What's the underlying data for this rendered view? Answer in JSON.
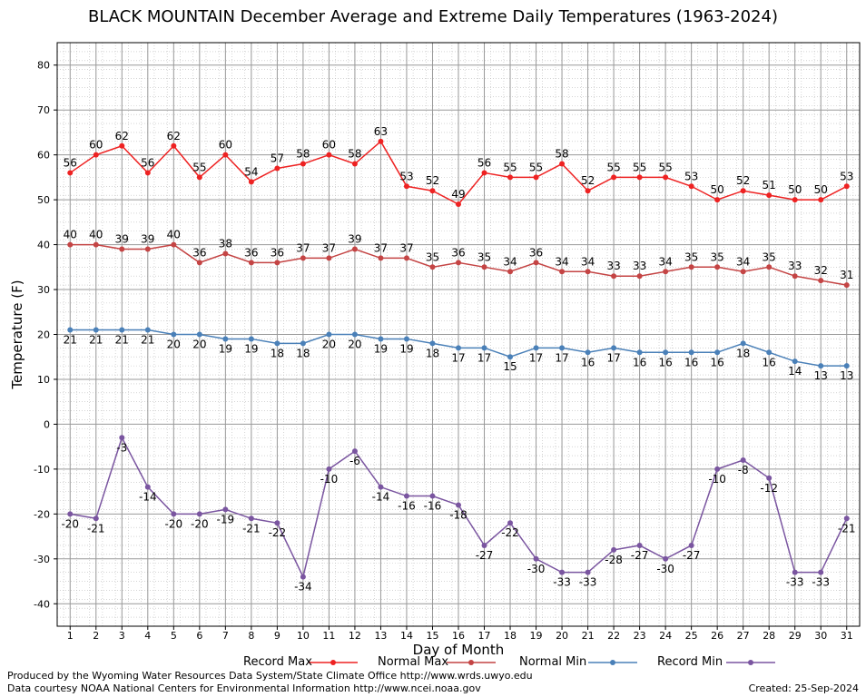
{
  "title": "BLACK MOUNTAIN December Average and Extreme Daily Temperatures (1963-2024)",
  "footer": {
    "produced_by": "Produced by the Wyoming Water Resources Data System/State Climate Office http://www.wrds.uwyo.edu",
    "courtesy": "Data courtesy NOAA National Centers for Environmental Information http://www.ncei.noaa.gov",
    "created": "Created:  25-Sep-2024"
  },
  "chart_data": {
    "type": "line",
    "xlabel": "Day of Month",
    "ylabel": "Temperature (F)",
    "ylim": [
      -45,
      85
    ],
    "yticks": [
      -40,
      -30,
      -20,
      -10,
      0,
      10,
      20,
      30,
      40,
      50,
      60,
      70,
      80
    ],
    "x": [
      1,
      2,
      3,
      4,
      5,
      6,
      7,
      8,
      9,
      10,
      11,
      12,
      13,
      14,
      15,
      16,
      17,
      18,
      19,
      20,
      21,
      22,
      23,
      24,
      25,
      26,
      27,
      28,
      29,
      30,
      31
    ],
    "grid": true,
    "legend_position": "bottom",
    "series": [
      {
        "name": "Record Max",
        "color": "#ee2222",
        "values": [
          56,
          60,
          62,
          56,
          62,
          55,
          60,
          54,
          57,
          58,
          60,
          58,
          63,
          53,
          52,
          49,
          56,
          55,
          55,
          58,
          52,
          55,
          55,
          55,
          53,
          50,
          52,
          51,
          50,
          50,
          53
        ]
      },
      {
        "name": "Normal Max",
        "color": "#c44444",
        "values": [
          40,
          40,
          39,
          39,
          40,
          36,
          38,
          36,
          36,
          37,
          37,
          39,
          37,
          37,
          35,
          36,
          35,
          34,
          36,
          34,
          34,
          33,
          33,
          34,
          35,
          35,
          34,
          35,
          33,
          32,
          31
        ]
      },
      {
        "name": "Normal Min",
        "color": "#4a80b8",
        "values": [
          21,
          21,
          21,
          21,
          20,
          20,
          19,
          19,
          18,
          18,
          20,
          20,
          19,
          19,
          18,
          17,
          17,
          15,
          17,
          17,
          16,
          17,
          16,
          16,
          16,
          16,
          18,
          16,
          14,
          13,
          13
        ]
      },
      {
        "name": "Record Min",
        "color": "#7a55a0",
        "values": [
          -20,
          -21,
          -3,
          -14,
          -20,
          -20,
          -19,
          -21,
          -22,
          -34,
          -10,
          -6,
          -14,
          -16,
          -16,
          -18,
          -27,
          -22,
          -30,
          -33,
          -33,
          -28,
          -27,
          -30,
          -27,
          -10,
          -8,
          -12,
          -33,
          -33,
          -21
        ]
      }
    ]
  }
}
